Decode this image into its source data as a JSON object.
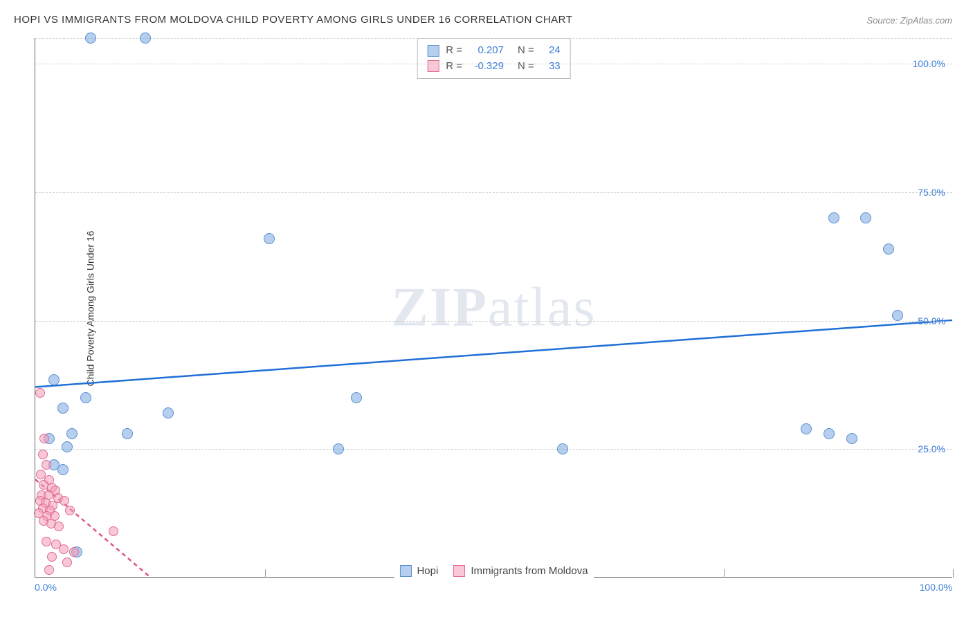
{
  "title": "HOPI VS IMMIGRANTS FROM MOLDOVA CHILD POVERTY AMONG GIRLS UNDER 16 CORRELATION CHART",
  "source": "Source: ZipAtlas.com",
  "y_axis_label": "Child Poverty Among Girls Under 16",
  "watermark": {
    "part1": "ZIP",
    "part2": "atlas"
  },
  "chart": {
    "type": "scatter",
    "xlim": [
      0,
      100
    ],
    "ylim": [
      0,
      105
    ],
    "x_ticks": [
      {
        "value": 0,
        "label": "0.0%",
        "align": "left"
      },
      {
        "value": 100,
        "label": "100.0%",
        "align": "right"
      }
    ],
    "y_ticks": [
      {
        "value": 25,
        "label": "25.0%"
      },
      {
        "value": 50,
        "label": "50.0%"
      },
      {
        "value": 75,
        "label": "75.0%"
      },
      {
        "value": 100,
        "label": "100.0%"
      }
    ],
    "grid_y": [
      25,
      50,
      75,
      100,
      105
    ],
    "grid_x": [
      25,
      50,
      75,
      100
    ],
    "background_color": "#ffffff",
    "grid_color": "#d0d0d0",
    "marker_size_blue": 16,
    "marker_size_pink": 14,
    "series": [
      {
        "name": "Hopi",
        "color_fill": "rgba(122,168,226,0.55)",
        "color_stroke": "#5b8fd0",
        "class": "pt-blue",
        "trend": {
          "x1": 0,
          "y1": 37,
          "x2": 100,
          "y2": 50,
          "color": "#1f6fd6",
          "width": 2.5,
          "dash": "none"
        },
        "points": [
          [
            6,
            105
          ],
          [
            12,
            105
          ],
          [
            25.5,
            66
          ],
          [
            87,
            70
          ],
          [
            90.5,
            70
          ],
          [
            93,
            64
          ],
          [
            94,
            51
          ],
          [
            2,
            38.5
          ],
          [
            5.5,
            35
          ],
          [
            3,
            33
          ],
          [
            14.5,
            32
          ],
          [
            84,
            29
          ],
          [
            86.5,
            28
          ],
          [
            89,
            27
          ],
          [
            4,
            28
          ],
          [
            10,
            28
          ],
          [
            3.5,
            25.5
          ],
          [
            33,
            25
          ],
          [
            57.5,
            25
          ],
          [
            1.5,
            27
          ],
          [
            2,
            22
          ],
          [
            3,
            21
          ],
          [
            35,
            35
          ],
          [
            4.5,
            5
          ]
        ]
      },
      {
        "name": "Immigrants from Moldova",
        "color_fill": "rgba(242,154,180,0.55)",
        "color_stroke": "#e26b92",
        "class": "pt-pink",
        "trend": {
          "x1": 0,
          "y1": 19,
          "x2": 12.5,
          "y2": 0,
          "color": "#e05586",
          "width": 2.5,
          "dash": "6 5"
        },
        "points": [
          [
            0.5,
            36
          ],
          [
            1,
            27
          ],
          [
            0.8,
            24
          ],
          [
            1.2,
            22
          ],
          [
            0.6,
            20
          ],
          [
            1.5,
            19
          ],
          [
            0.9,
            18
          ],
          [
            1.8,
            17.5
          ],
          [
            2.2,
            17
          ],
          [
            0.7,
            16
          ],
          [
            1.4,
            16
          ],
          [
            2.5,
            15.5
          ],
          [
            0.5,
            15
          ],
          [
            1.1,
            14.5
          ],
          [
            1.9,
            14
          ],
          [
            3.2,
            15
          ],
          [
            0.8,
            13.5
          ],
          [
            1.6,
            13
          ],
          [
            0.4,
            12.5
          ],
          [
            1.3,
            12
          ],
          [
            2.1,
            12
          ],
          [
            3.8,
            13
          ],
          [
            0.9,
            11
          ],
          [
            1.7,
            10.5
          ],
          [
            2.6,
            10
          ],
          [
            8.5,
            9
          ],
          [
            1.2,
            7
          ],
          [
            2.3,
            6.5
          ],
          [
            3.1,
            5.5
          ],
          [
            4.2,
            5
          ],
          [
            1.8,
            4
          ],
          [
            3.5,
            3
          ],
          [
            1.5,
            1.5
          ]
        ]
      }
    ]
  },
  "stats": [
    {
      "swatch": "sw-blue",
      "r_label": "R =",
      "r": "0.207",
      "n_label": "N =",
      "n": "24"
    },
    {
      "swatch": "sw-pink",
      "r_label": "R =",
      "r": "-0.329",
      "n_label": "N =",
      "n": "33"
    }
  ],
  "bottom_legend": [
    {
      "swatch": "sw-blue",
      "label": "Hopi"
    },
    {
      "swatch": "sw-pink",
      "label": "Immigrants from Moldova"
    }
  ]
}
